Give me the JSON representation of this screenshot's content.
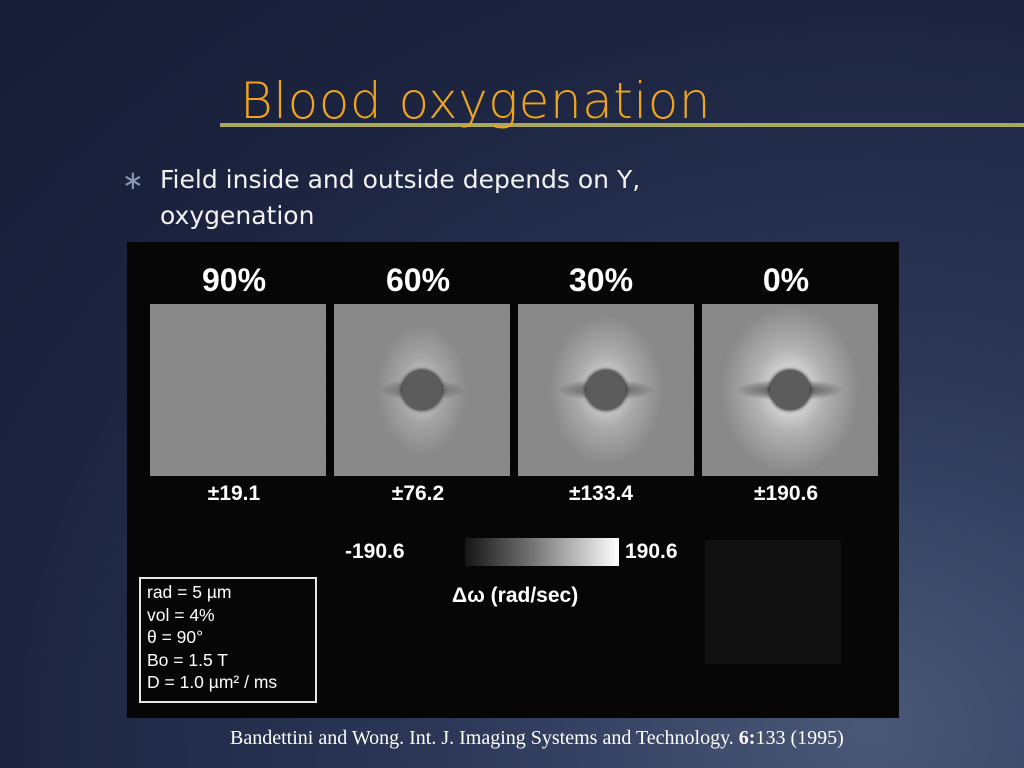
{
  "slide": {
    "title": "Blood oxygenation",
    "bullet_symbol": "∗",
    "bullet_text": "Field inside and outside depends on Y, oxygenation",
    "citation_prefix": "Bandettini and Wong. Int. J. Imaging Systems and Technology. ",
    "citation_volume": "6:",
    "citation_suffix": "133 (1995)"
  },
  "figure": {
    "panels": [
      {
        "oxygenation": "90%",
        "range": "±19.1",
        "strength": 0.0
      },
      {
        "oxygenation": "60%",
        "range": "±76.2",
        "strength": 0.4
      },
      {
        "oxygenation": "30%",
        "range": "±133.4",
        "strength": 0.7
      },
      {
        "oxygenation": "0%",
        "range": "±190.6",
        "strength": 1.0
      }
    ],
    "colorbar": {
      "min": "-190.6",
      "max": "190.6",
      "label": "Δω (rad/sec)"
    },
    "parameters": [
      {
        "text": "rad = 5 µm"
      },
      {
        "text": "vol = 4%"
      },
      {
        "text": "θ = 90°"
      },
      {
        "text": "Bo = 1.5 T"
      },
      {
        "text": "D = 1.0 µm² / ms"
      }
    ]
  },
  "colors": {
    "title": "#f0a41c",
    "title_rule": "#a9a95e",
    "background": "#1c2440",
    "text": "#f2f2f2"
  }
}
